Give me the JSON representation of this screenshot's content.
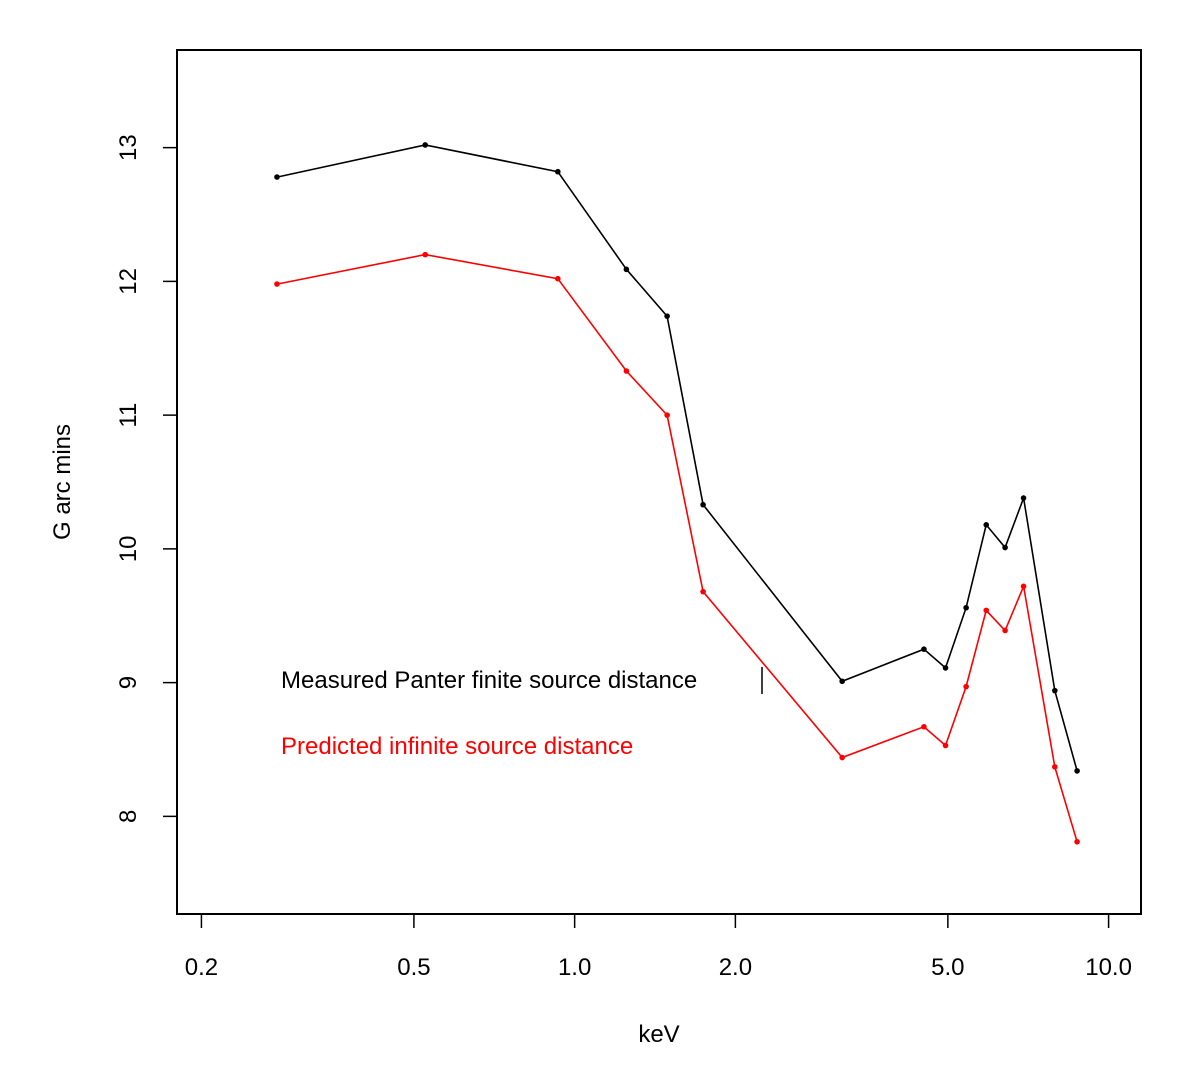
{
  "chart_data": {
    "type": "line",
    "xscale": "log",
    "xlim": [
      0.18,
      11.5
    ],
    "ylim": [
      7.27,
      13.73
    ],
    "xlabel": "keV",
    "ylabel": "G arc mins",
    "xticks": [
      0.2,
      0.5,
      1.0,
      2.0,
      5.0,
      10.0
    ],
    "xtick_labels": [
      "0.2",
      "0.5",
      "1.0",
      "2.0",
      "5.0",
      "10.0"
    ],
    "yticks": [
      8,
      9,
      10,
      11,
      12,
      13
    ],
    "ytick_labels": [
      "8",
      "9",
      "10",
      "11",
      "12",
      "13"
    ],
    "grid": false,
    "series": [
      {
        "name": "Measured Panter finite source distance",
        "color": "#000000",
        "x": [
          0.277,
          0.525,
          0.93,
          1.25,
          1.49,
          1.74,
          3.17,
          4.51,
          4.95,
          5.41,
          5.9,
          6.4,
          6.93,
          7.93,
          8.73
        ],
        "y": [
          12.78,
          13.02,
          12.82,
          12.09,
          11.74,
          10.33,
          9.01,
          9.25,
          9.11,
          9.56,
          10.18,
          10.01,
          10.38,
          8.94,
          8.34
        ]
      },
      {
        "name": "Predicted infinite source distance",
        "color": "#ff0000",
        "x": [
          0.277,
          0.525,
          0.93,
          1.25,
          1.49,
          1.74,
          3.17,
          4.51,
          4.95,
          5.41,
          5.9,
          6.4,
          6.93,
          7.93,
          8.73
        ],
        "y": [
          11.98,
          12.2,
          12.02,
          11.33,
          11.0,
          9.68,
          8.44,
          8.67,
          8.53,
          8.97,
          9.54,
          9.39,
          9.72,
          8.37,
          7.81
        ]
      }
    ],
    "legend": [
      {
        "label": "Measured Panter finite source distance",
        "color": "#000000"
      },
      {
        "label": "Predicted infinite source distance",
        "color": "#ff0000"
      }
    ],
    "legend_position": "inside-bottom-left"
  }
}
